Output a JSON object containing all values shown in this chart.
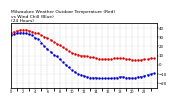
{
  "title": "Milwaukee Weather Outdoor Temperature (Red)\nvs Wind Chill (Blue)\n(24 Hours)",
  "title_fontsize": 3.2,
  "background_color": "#ffffff",
  "grid_color": "#aaaaaa",
  "xlim": [
    0,
    24
  ],
  "ylim": [
    -25,
    45
  ],
  "yticks": [
    -20,
    -10,
    0,
    10,
    20,
    30,
    40
  ],
  "ytick_fontsize": 2.8,
  "xtick_fontsize": 2.5,
  "temp_color": "#dd0000",
  "windchill_color": "#0000cc",
  "temp_x": [
    0,
    0.5,
    1,
    1.5,
    2,
    2.5,
    3,
    3.5,
    4,
    4.5,
    5,
    5.5,
    6,
    6.5,
    7,
    7.5,
    8,
    8.5,
    9,
    9.5,
    10,
    10.5,
    11,
    11.5,
    12,
    12.5,
    13,
    13.5,
    14,
    14.5,
    15,
    15.5,
    16,
    16.5,
    17,
    17.5,
    18,
    18.5,
    19,
    19.5,
    20,
    20.5,
    21,
    21.5,
    22,
    22.5,
    23,
    23.5
  ],
  "temp_y": [
    35,
    36,
    37,
    38,
    38,
    38,
    37,
    36,
    35,
    34,
    32,
    30,
    29,
    27,
    25,
    23,
    21,
    19,
    17,
    15,
    13,
    12,
    11,
    10,
    10,
    9,
    8,
    8,
    7,
    6,
    6,
    6,
    6,
    6,
    7,
    7,
    7,
    7,
    6,
    6,
    5,
    5,
    5,
    5,
    6,
    6,
    7,
    7
  ],
  "wc_x": [
    0,
    0.5,
    1,
    1.5,
    2,
    2.5,
    3,
    3.5,
    4,
    4.5,
    5,
    5.5,
    6,
    6.5,
    7,
    7.5,
    8,
    8.5,
    9,
    9.5,
    10,
    10.5,
    11,
    11.5,
    12,
    12.5,
    13,
    13.5,
    14,
    14.5,
    15,
    15.5,
    16,
    16.5,
    17,
    17.5,
    18,
    18.5,
    19,
    19.5,
    20,
    20.5,
    21,
    21.5,
    22,
    22.5,
    23,
    23.5
  ],
  "wc_y": [
    32,
    33,
    34,
    35,
    35,
    34,
    33,
    32,
    29,
    28,
    24,
    20,
    17,
    14,
    11,
    9,
    6,
    3,
    0,
    -3,
    -6,
    -8,
    -10,
    -11,
    -12,
    -13,
    -14,
    -14,
    -14,
    -15,
    -15,
    -15,
    -15,
    -15,
    -14,
    -14,
    -13,
    -13,
    -14,
    -14,
    -15,
    -14,
    -13,
    -13,
    -12,
    -11,
    -10,
    -9
  ]
}
